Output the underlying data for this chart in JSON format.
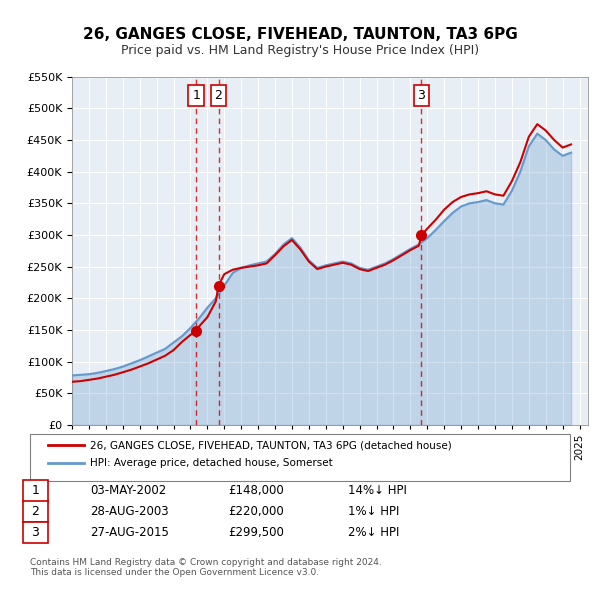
{
  "title": "26, GANGES CLOSE, FIVEHEAD, TAUNTON, TA3 6PG",
  "subtitle": "Price paid vs. HM Land Registry's House Price Index (HPI)",
  "sale_color": "#cc0000",
  "hpi_color": "#6699cc",
  "bg_color": "#ffffff",
  "plot_bg_color": "#e8eef5",
  "grid_color": "#ffffff",
  "ylim": [
    0,
    550000
  ],
  "yticks": [
    0,
    50000,
    100000,
    150000,
    200000,
    250000,
    300000,
    350000,
    400000,
    450000,
    500000,
    550000
  ],
  "xlim_start": 1995.0,
  "xlim_end": 2025.5,
  "sales": [
    {
      "date_num": 2002.34,
      "price": 148000,
      "label": "1"
    },
    {
      "date_num": 2003.66,
      "price": 220000,
      "label": "2"
    },
    {
      "date_num": 2015.65,
      "price": 299500,
      "label": "3"
    }
  ],
  "vlines": [
    {
      "x": 2002.34,
      "label": "1"
    },
    {
      "x": 2003.66,
      "label": "2"
    },
    {
      "x": 2015.65,
      "label": "3"
    }
  ],
  "legend_sale_label": "26, GANGES CLOSE, FIVEHEAD, TAUNTON, TA3 6PG (detached house)",
  "legend_hpi_label": "HPI: Average price, detached house, Somerset",
  "table_entries": [
    {
      "num": "1",
      "date": "03-MAY-2002",
      "price": "£148,000",
      "pct": "14%↓ HPI"
    },
    {
      "num": "2",
      "date": "28-AUG-2003",
      "price": "£220,000",
      "pct": "1%↓ HPI"
    },
    {
      "num": "3",
      "date": "27-AUG-2015",
      "price": "£299,500",
      "pct": "2%↓ HPI"
    }
  ],
  "footnote": "Contains HM Land Registry data © Crown copyright and database right 2024.\nThis data is licensed under the Open Government Licence v3.0."
}
